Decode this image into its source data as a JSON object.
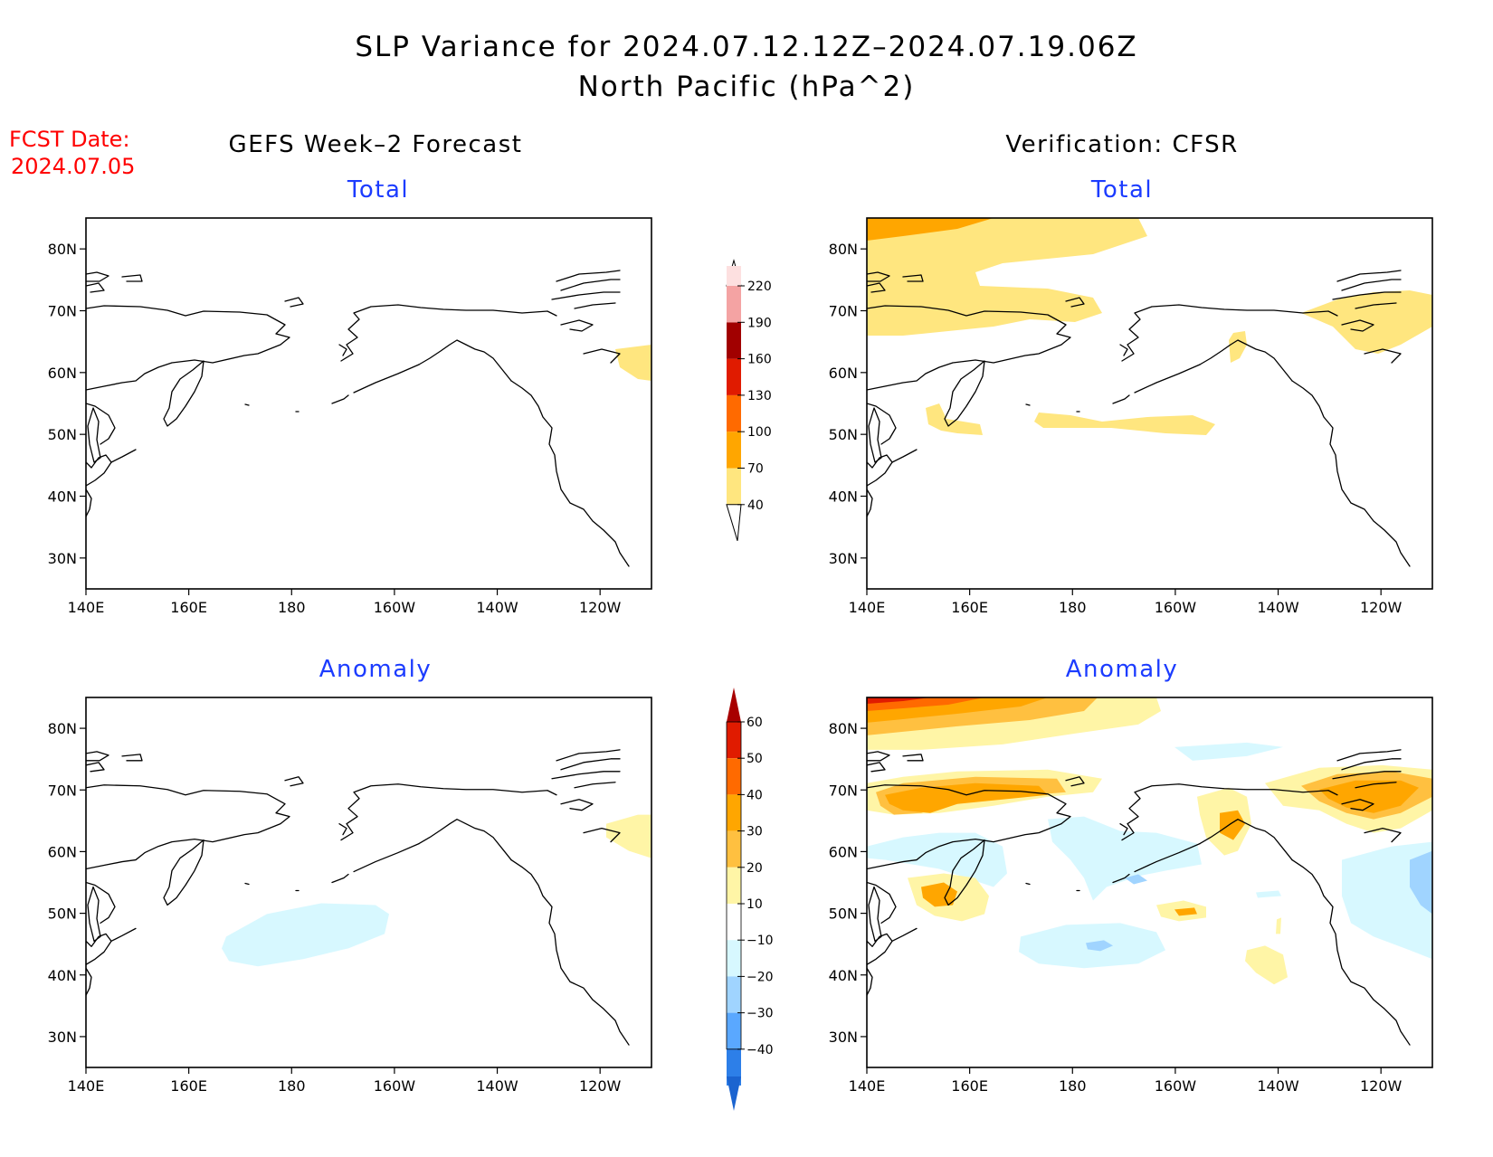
{
  "header": {
    "title_line1": "SLP Variance for 2024.07.12.12Z–2024.07.19.06Z",
    "title_line2": "North Pacific (hPa^2)",
    "fcst_date_label": "FCST Date:",
    "fcst_date_value": "2024.07.05"
  },
  "columns": {
    "left": "GEFS Week–2 Forecast",
    "right": "Verification: CFSR"
  },
  "panels": {
    "forecast_total": {
      "subtitle": "Total"
    },
    "verification_total": {
      "subtitle": "Total"
    },
    "forecast_anomaly": {
      "subtitle": "Anomaly"
    },
    "verification_anomaly": {
      "subtitle": "Anomaly"
    }
  },
  "axes": {
    "lat_labels": [
      "80N",
      "70N",
      "60N",
      "50N",
      "40N",
      "30N"
    ],
    "lat_values": [
      80,
      70,
      60,
      50,
      40,
      30
    ],
    "lat_range": [
      25,
      85
    ],
    "lon_labels": [
      "140E",
      "160E",
      "180",
      "160W",
      "140W",
      "120W"
    ],
    "lon_values": [
      140,
      160,
      180,
      200,
      220,
      240
    ],
    "lon_range": [
      140,
      250
    ]
  },
  "colorbars": {
    "total": {
      "levels": [
        "40",
        "70",
        "100",
        "130",
        "160",
        "190",
        "220"
      ],
      "colors": [
        "#ffe67f",
        "#ffa600",
        "#ff6a00",
        "#e01b00",
        "#a10000",
        "#f4a3a3",
        "#fde0e0"
      ]
    },
    "anomaly": {
      "levels": [
        "60",
        "50",
        "40",
        "30",
        "20",
        "10",
        "−10",
        "−20",
        "−30",
        "−40"
      ],
      "colors": [
        "#a80000",
        "#e01b00",
        "#ff6a00",
        "#ffa600",
        "#ffc040",
        "#fff5a6",
        "#ffffff",
        "#d7f8ff",
        "#a0d4ff",
        "#5aa8ff",
        "#2d7fe8",
        "#1b64d0"
      ]
    }
  },
  "colors": {
    "title": "#000000",
    "fcst_date": "#ff0000",
    "subtitle": "#1c3cff"
  }
}
